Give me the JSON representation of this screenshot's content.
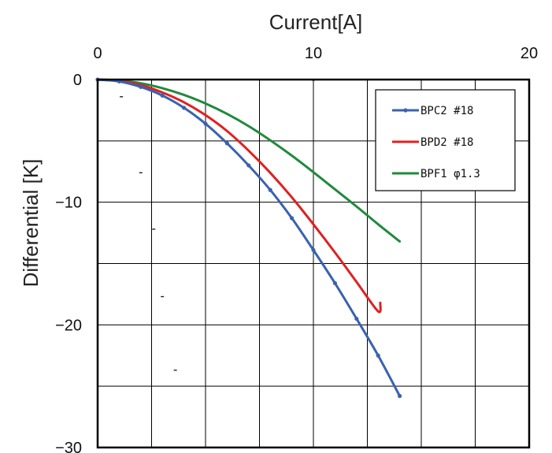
{
  "chart_data": {
    "type": "line",
    "xlabel": "Current[A]",
    "ylabel": "Differential [K]",
    "x_ticks": [
      "0",
      "10",
      "20"
    ],
    "y_ticks": [
      "0",
      "−10",
      "−20",
      "−30"
    ],
    "xlim": [
      0,
      20
    ],
    "ylim": [
      -30,
      0
    ],
    "x_gridlines": [
      0,
      2.5,
      5,
      7.5,
      10,
      12.5,
      15,
      17.5,
      20
    ],
    "y_gridlines": [
      0,
      -5,
      -10,
      -15,
      -20,
      -25,
      -30
    ],
    "grid": true,
    "legend_position": "top-right",
    "series": [
      {
        "name": "BPC2 #18",
        "color": "#3a62b0",
        "marker": "dot",
        "x": [
          0,
          1,
          2,
          3,
          4,
          5,
          6,
          7,
          8,
          9,
          10,
          11,
          12,
          13,
          14
        ],
        "y": [
          0,
          -0.15,
          -0.6,
          -1.3,
          -2.3,
          -3.6,
          -5.2,
          -7.0,
          -9.0,
          -11.3,
          -13.9,
          -16.6,
          -19.5,
          -22.5,
          -25.8
        ]
      },
      {
        "name": "BPD2 #18",
        "color": "#e02020",
        "marker": "none",
        "x": [
          0,
          1,
          2,
          3,
          4,
          5,
          6,
          7,
          8,
          9,
          10,
          11,
          12,
          13,
          13.1
        ],
        "y": [
          0,
          -0.1,
          -0.45,
          -1.05,
          -1.85,
          -2.9,
          -4.2,
          -5.8,
          -7.6,
          -9.6,
          -11.8,
          -14.1,
          -16.5,
          -18.9,
          -18.2
        ]
      },
      {
        "name": "BPF1 φ1.3",
        "color": "#1f8a3c",
        "marker": "none",
        "x": [
          0,
          1,
          2,
          3,
          4,
          5,
          6,
          7,
          8,
          9,
          10,
          11,
          12,
          13,
          14
        ],
        "y": [
          0,
          -0.08,
          -0.3,
          -0.7,
          -1.25,
          -1.95,
          -2.8,
          -3.8,
          -4.95,
          -6.2,
          -7.55,
          -8.95,
          -10.35,
          -11.8,
          -13.2
        ]
      }
    ],
    "stray_marks": [
      {
        "x": 1.1,
        "y": -1.4
      },
      {
        "x": 2.0,
        "y": -7.6
      },
      {
        "x": 2.6,
        "y": -12.2
      },
      {
        "x": 3.0,
        "y": -17.7
      },
      {
        "x": 3.6,
        "y": -23.7
      },
      {
        "x": 10.0,
        "y": -0.05
      }
    ]
  }
}
